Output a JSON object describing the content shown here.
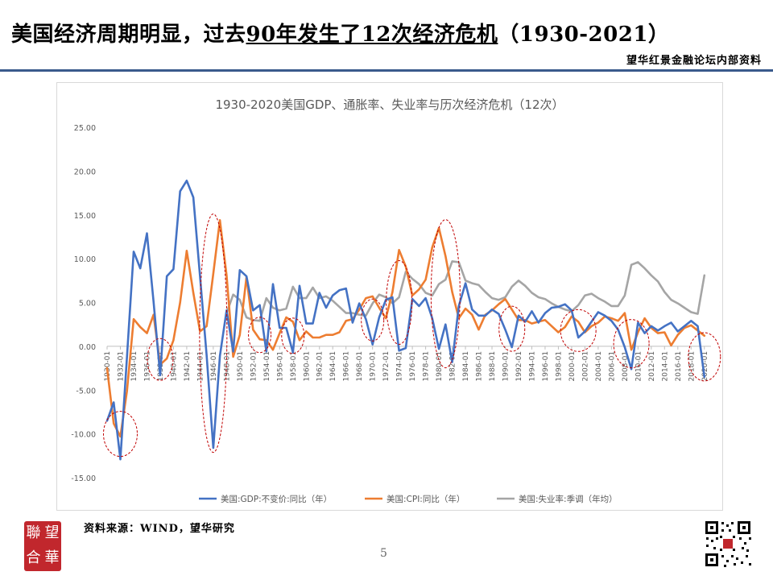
{
  "title": {
    "part1": "美国经济周期明显，过去",
    "part2_underlined": "90年发生了12次经济危机",
    "part3": "（1930-2021）"
  },
  "brand_tag": "望华红景金融论坛内部资料",
  "source": "资料来源：WIND，望华研究",
  "page_number": "5",
  "logo_text": [
    "聯",
    "望",
    "合",
    "華"
  ],
  "colors": {
    "gdp": "#4472C4",
    "cpi": "#ED7D31",
    "unemployment": "#A5A5A5",
    "highlight": "#C00000",
    "rule": "#3a5a8c"
  },
  "chart_data": {
    "type": "line",
    "title": "1930-2020美国GDP、通胀率、失业率与历次经济危机（12次）",
    "ylim": [
      -15,
      25
    ],
    "y_ticks": [
      "25.00",
      "20.00",
      "15.00",
      "10.00",
      "5.00",
      "0.00",
      "-5.00",
      "-10.00",
      "-15.00"
    ],
    "x_start": 1930,
    "x_end": 2021,
    "x_tick_labels": [
      "1930-01",
      "1932-01",
      "1934-01",
      "1936-01",
      "1938-01",
      "1940-01",
      "1942-01",
      "1944-01",
      "1946-01",
      "1948-01",
      "1950-01",
      "1952-01",
      "1954-01",
      "1956-01",
      "1958-01",
      "1960-01",
      "1962-01",
      "1964-01",
      "1966-01",
      "1968-01",
      "1970-01",
      "1972-01",
      "1974-01",
      "1976-01",
      "1978-01",
      "1980-01",
      "1982-01",
      "1984-01",
      "1986-01",
      "1988-01",
      "1990-01",
      "1992-01",
      "1994-01",
      "1996-01",
      "1998-01",
      "2000-01",
      "2002-01",
      "2004-01",
      "2006-01",
      "2008-01",
      "2010-01",
      "2012-01",
      "2014-01",
      "2016-01",
      "2018-01",
      "2020-01"
    ],
    "legend_position": "bottom",
    "series": [
      {
        "name": "美国:GDP:不变价:同比（年）",
        "color_key": "gdp",
        "points": [
          [
            1930,
            -8.5
          ],
          [
            1931,
            -6.4
          ],
          [
            1932,
            -12.9
          ],
          [
            1933,
            -1.2
          ],
          [
            1934,
            10.8
          ],
          [
            1935,
            8.9
          ],
          [
            1936,
            12.9
          ],
          [
            1937,
            5.1
          ],
          [
            1938,
            -3.3
          ],
          [
            1939,
            8.0
          ],
          [
            1940,
            8.8
          ],
          [
            1941,
            17.7
          ],
          [
            1942,
            18.9
          ],
          [
            1943,
            17.0
          ],
          [
            1944,
            8.0
          ],
          [
            1945,
            -1.0
          ],
          [
            1946,
            -11.6
          ],
          [
            1947,
            -1.1
          ],
          [
            1948,
            4.1
          ],
          [
            1949,
            -0.6
          ],
          [
            1950,
            8.7
          ],
          [
            1951,
            8.0
          ],
          [
            1952,
            4.1
          ],
          [
            1953,
            4.7
          ],
          [
            1954,
            -0.6
          ],
          [
            1955,
            7.1
          ],
          [
            1956,
            2.1
          ],
          [
            1957,
            2.1
          ],
          [
            1958,
            -0.7
          ],
          [
            1959,
            6.9
          ],
          [
            1960,
            2.6
          ],
          [
            1961,
            2.6
          ],
          [
            1962,
            6.1
          ],
          [
            1963,
            4.4
          ],
          [
            1964,
            5.8
          ],
          [
            1965,
            6.4
          ],
          [
            1966,
            6.6
          ],
          [
            1967,
            2.7
          ],
          [
            1968,
            4.9
          ],
          [
            1969,
            3.1
          ],
          [
            1970,
            0.2
          ],
          [
            1971,
            3.3
          ],
          [
            1972,
            5.3
          ],
          [
            1973,
            5.6
          ],
          [
            1974,
            -0.5
          ],
          [
            1975,
            -0.2
          ],
          [
            1976,
            5.4
          ],
          [
            1977,
            4.6
          ],
          [
            1978,
            5.5
          ],
          [
            1979,
            3.2
          ],
          [
            1980,
            -0.3
          ],
          [
            1981,
            2.5
          ],
          [
            1982,
            -1.8
          ],
          [
            1983,
            4.6
          ],
          [
            1984,
            7.2
          ],
          [
            1985,
            4.2
          ],
          [
            1986,
            3.5
          ],
          [
            1987,
            3.5
          ],
          [
            1988,
            4.2
          ],
          [
            1989,
            3.7
          ],
          [
            1990,
            1.9
          ],
          [
            1991,
            -0.1
          ],
          [
            1992,
            3.5
          ],
          [
            1993,
            2.8
          ],
          [
            1994,
            4.0
          ],
          [
            1995,
            2.7
          ],
          [
            1996,
            3.8
          ],
          [
            1997,
            4.4
          ],
          [
            1998,
            4.5
          ],
          [
            1999,
            4.8
          ],
          [
            2000,
            4.1
          ],
          [
            2001,
            1.0
          ],
          [
            2002,
            1.7
          ],
          [
            2003,
            2.8
          ],
          [
            2004,
            3.9
          ],
          [
            2005,
            3.5
          ],
          [
            2006,
            2.9
          ],
          [
            2007,
            1.9
          ],
          [
            2008,
            -0.1
          ],
          [
            2009,
            -2.6
          ],
          [
            2010,
            2.7
          ],
          [
            2011,
            1.5
          ],
          [
            2012,
            2.3
          ],
          [
            2013,
            1.8
          ],
          [
            2014,
            2.3
          ],
          [
            2015,
            2.7
          ],
          [
            2016,
            1.7
          ],
          [
            2017,
            2.3
          ],
          [
            2018,
            2.9
          ],
          [
            2019,
            2.3
          ],
          [
            2020,
            -3.5
          ]
        ]
      },
      {
        "name": "美国:CPI:同比（年）",
        "color_key": "cpi",
        "points": [
          [
            1930,
            -2.5
          ],
          [
            1931,
            -8.8
          ],
          [
            1932,
            -10.3
          ],
          [
            1933,
            -5.1
          ],
          [
            1934,
            3.1
          ],
          [
            1935,
            2.2
          ],
          [
            1936,
            1.5
          ],
          [
            1937,
            3.6
          ],
          [
            1938,
            -2.1
          ],
          [
            1939,
            -1.4
          ],
          [
            1940,
            0.7
          ],
          [
            1941,
            5.0
          ],
          [
            1942,
            10.9
          ],
          [
            1943,
            6.1
          ],
          [
            1944,
            1.7
          ],
          [
            1945,
            2.3
          ],
          [
            1946,
            8.3
          ],
          [
            1947,
            14.4
          ],
          [
            1948,
            8.1
          ],
          [
            1949,
            -1.2
          ],
          [
            1950,
            1.3
          ],
          [
            1951,
            7.9
          ],
          [
            1952,
            1.9
          ],
          [
            1953,
            0.8
          ],
          [
            1954,
            0.7
          ],
          [
            1955,
            -0.4
          ],
          [
            1956,
            1.5
          ],
          [
            1957,
            3.3
          ],
          [
            1958,
            2.8
          ],
          [
            1959,
            0.7
          ],
          [
            1960,
            1.7
          ],
          [
            1961,
            1.0
          ],
          [
            1962,
            1.0
          ],
          [
            1963,
            1.3
          ],
          [
            1964,
            1.3
          ],
          [
            1965,
            1.6
          ],
          [
            1966,
            2.9
          ],
          [
            1967,
            3.1
          ],
          [
            1968,
            4.2
          ],
          [
            1969,
            5.5
          ],
          [
            1970,
            5.7
          ],
          [
            1971,
            4.4
          ],
          [
            1972,
            3.2
          ],
          [
            1973,
            6.2
          ],
          [
            1974,
            11.0
          ],
          [
            1975,
            9.1
          ],
          [
            1976,
            5.8
          ],
          [
            1977,
            6.5
          ],
          [
            1978,
            7.6
          ],
          [
            1979,
            11.3
          ],
          [
            1980,
            13.5
          ],
          [
            1981,
            10.3
          ],
          [
            1982,
            6.2
          ],
          [
            1983,
            3.2
          ],
          [
            1984,
            4.3
          ],
          [
            1985,
            3.6
          ],
          [
            1986,
            1.9
          ],
          [
            1987,
            3.6
          ],
          [
            1988,
            4.1
          ],
          [
            1989,
            4.8
          ],
          [
            1990,
            5.4
          ],
          [
            1991,
            4.2
          ],
          [
            1992,
            3.0
          ],
          [
            1993,
            3.0
          ],
          [
            1994,
            2.6
          ],
          [
            1995,
            2.8
          ],
          [
            1996,
            3.0
          ],
          [
            1997,
            2.3
          ],
          [
            1998,
            1.6
          ],
          [
            1999,
            2.2
          ],
          [
            2000,
            3.4
          ],
          [
            2001,
            2.8
          ],
          [
            2002,
            1.6
          ],
          [
            2003,
            2.3
          ],
          [
            2004,
            2.7
          ],
          [
            2005,
            3.4
          ],
          [
            2006,
            3.2
          ],
          [
            2007,
            2.9
          ],
          [
            2008,
            3.8
          ],
          [
            2009,
            -0.4
          ],
          [
            2010,
            1.6
          ],
          [
            2011,
            3.2
          ],
          [
            2012,
            2.1
          ],
          [
            2013,
            1.5
          ],
          [
            2014,
            1.6
          ],
          [
            2015,
            0.1
          ],
          [
            2016,
            1.3
          ],
          [
            2017,
            2.1
          ],
          [
            2018,
            2.4
          ],
          [
            2019,
            1.8
          ],
          [
            2020,
            1.2
          ]
        ]
      },
      {
        "name": "美国:失业率:季调（年均）",
        "color_key": "unemployment",
        "points": [
          [
            1948,
            3.8
          ],
          [
            1949,
            5.9
          ],
          [
            1950,
            5.3
          ],
          [
            1951,
            3.3
          ],
          [
            1952,
            3.0
          ],
          [
            1953,
            2.9
          ],
          [
            1954,
            5.5
          ],
          [
            1955,
            4.4
          ],
          [
            1956,
            4.1
          ],
          [
            1957,
            4.3
          ],
          [
            1958,
            6.8
          ],
          [
            1959,
            5.5
          ],
          [
            1960,
            5.5
          ],
          [
            1961,
            6.7
          ],
          [
            1962,
            5.5
          ],
          [
            1963,
            5.7
          ],
          [
            1964,
            5.2
          ],
          [
            1965,
            4.5
          ],
          [
            1966,
            3.8
          ],
          [
            1967,
            3.8
          ],
          [
            1968,
            3.6
          ],
          [
            1969,
            3.5
          ],
          [
            1970,
            4.9
          ],
          [
            1971,
            5.9
          ],
          [
            1972,
            5.6
          ],
          [
            1973,
            4.9
          ],
          [
            1974,
            5.6
          ],
          [
            1975,
            8.5
          ],
          [
            1976,
            7.7
          ],
          [
            1977,
            7.1
          ],
          [
            1978,
            6.1
          ],
          [
            1979,
            5.8
          ],
          [
            1980,
            7.1
          ],
          [
            1981,
            7.6
          ],
          [
            1982,
            9.7
          ],
          [
            1983,
            9.6
          ],
          [
            1984,
            7.5
          ],
          [
            1985,
            7.2
          ],
          [
            1986,
            7.0
          ],
          [
            1987,
            6.2
          ],
          [
            1988,
            5.5
          ],
          [
            1989,
            5.3
          ],
          [
            1990,
            5.6
          ],
          [
            1991,
            6.8
          ],
          [
            1992,
            7.5
          ],
          [
            1993,
            6.9
          ],
          [
            1994,
            6.1
          ],
          [
            1995,
            5.6
          ],
          [
            1996,
            5.4
          ],
          [
            1997,
            4.9
          ],
          [
            1998,
            4.5
          ],
          [
            1999,
            4.2
          ],
          [
            2000,
            4.0
          ],
          [
            2001,
            4.7
          ],
          [
            2002,
            5.8
          ],
          [
            2003,
            6.0
          ],
          [
            2004,
            5.5
          ],
          [
            2005,
            5.1
          ],
          [
            2006,
            4.6
          ],
          [
            2007,
            4.6
          ],
          [
            2008,
            5.8
          ],
          [
            2009,
            9.3
          ],
          [
            2010,
            9.6
          ],
          [
            2011,
            8.9
          ],
          [
            2012,
            8.1
          ],
          [
            2013,
            7.4
          ],
          [
            2014,
            6.2
          ],
          [
            2015,
            5.3
          ],
          [
            2016,
            4.9
          ],
          [
            2017,
            4.4
          ],
          [
            2018,
            3.9
          ],
          [
            2019,
            3.7
          ],
          [
            2020,
            8.1
          ]
        ]
      }
    ],
    "crisis_highlights": [
      {
        "x": 1932,
        "y": -10.0
      },
      {
        "x": 1938,
        "y": -1.5
      },
      {
        "x": 1946,
        "y": 1.5
      },
      {
        "x": 1953,
        "y": 1.3
      },
      {
        "x": 1958,
        "y": 1.2
      },
      {
        "x": 1970,
        "y": 3.0
      },
      {
        "x": 1974,
        "y": 5.0
      },
      {
        "x": 1981,
        "y": 6.0
      },
      {
        "x": 1991,
        "y": 2.0
      },
      {
        "x": 2001,
        "y": 1.8
      },
      {
        "x": 2009,
        "y": 0.3
      },
      {
        "x": 2020,
        "y": -1.2
      }
    ]
  }
}
